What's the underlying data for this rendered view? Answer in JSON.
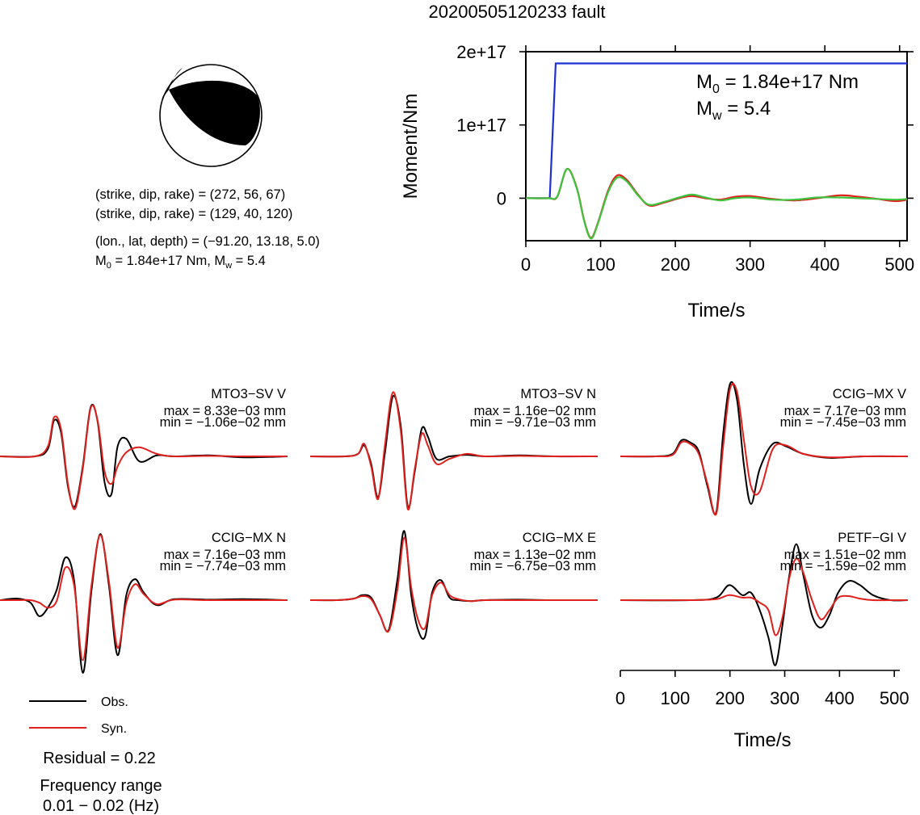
{
  "title": "20200505120233 fault",
  "colors": {
    "obs": "#000000",
    "syn": "#e0201c",
    "moment": "#1f2fd6",
    "moment_rate_a": "#e0201c",
    "moment_rate_b": "#3cc43c"
  },
  "beachball": {
    "lines": [
      "(strike, dip, rake) = (272, 56, 67)",
      "(strike, dip, rake) = (129, 40, 120)",
      "(lon., lat, depth) = (−91.20, 13.18, 5.0)"
    ],
    "m0_label": "M",
    "m0_sub": "0",
    "m0_value": " = 1.84e+17 Nm, M",
    "mw_sub": "w",
    "mw_value": " = 5.4"
  },
  "chart_data": [
    {
      "type": "line",
      "title": "",
      "xlabel": "Time/s",
      "ylabel": "Moment/Nm",
      "xlim": [
        0,
        510
      ],
      "ylim": [
        -5.8e+16,
        2e+17
      ],
      "xticks": [
        0,
        100,
        200,
        300,
        400,
        500
      ],
      "xtick_labels": [
        "0",
        "100",
        "200",
        "300",
        "400",
        "500"
      ],
      "yticks": [
        0,
        1e+17,
        2e+17
      ],
      "ytick_labels": [
        "0",
        "1e+17",
        "2e+17"
      ],
      "annotation": {
        "m0_label": "M",
        "m0_sub": "0",
        "m0_value": " = 1.84e+17 Nm",
        "mw_label": "M",
        "mw_sub": "w",
        "mw_value": " = 5.4"
      },
      "series": [
        {
          "color": "#1f2fd6",
          "x": [
            0,
            32,
            40,
            510
          ],
          "y": [
            0,
            0,
            1.84e+17,
            1.84e+17
          ]
        },
        {
          "color": "#e0201c",
          "x": [
            0,
            30,
            42,
            55,
            68,
            78,
            87,
            96,
            110,
            122,
            135,
            150,
            165,
            185,
            205,
            222,
            240,
            260,
            280,
            300,
            330,
            360,
            390,
            420,
            445,
            470,
            495,
            510
          ],
          "y": [
            0,
            0,
            2000000000000000.0,
            4e+16,
            1.5e+16,
            -3e+16,
            -5.4e+16,
            -3.5e+16,
            1e+16,
            3.1e+16,
            2.5e+16,
            5000000000000000.0,
            -1e+16,
            -6000000000000000.0,
            0,
            3000000000000000.0,
            0,
            -2000000000000000.0,
            2000000000000000.0,
            3000000000000000.0,
            -1000000000000000.0,
            -3000000000000000.0,
            0,
            4000000000000000.0,
            2000000000000000.0,
            -1000000000000000.0,
            -4000000000000000.0,
            -2000000000000000.0
          ]
        },
        {
          "color": "#3cc43c",
          "x": [
            0,
            30,
            42,
            55,
            68,
            78,
            87,
            96,
            110,
            122,
            135,
            150,
            165,
            185,
            205,
            222,
            240,
            260,
            280,
            300,
            330,
            360,
            390,
            420,
            445,
            470,
            495,
            510
          ],
          "y": [
            0,
            0,
            2500000000000000.0,
            4e+16,
            1.4e+16,
            -3.1e+16,
            -5.5e+16,
            -3.6e+16,
            8000000000000000.0,
            2.8e+16,
            2.3e+16,
            4000000000000000.0,
            -9000000000000000.0,
            -5000000000000000.0,
            1000000000000000.0,
            5000000000000000.0,
            1000000000000000.0,
            -3000000000000000.0,
            0,
            1000000000000000.0,
            -2000000000000000.0,
            -2000000000000000.0,
            1000000000000000.0,
            1000000000000000.0,
            0,
            -1000000000000000.0,
            -2000000000000000.0,
            -1000000000000000.0
          ]
        }
      ]
    },
    {
      "type": "line",
      "title": "",
      "xlabel": "Time/s",
      "xlim": [
        0,
        510
      ],
      "xticks": [
        0,
        100,
        200,
        300,
        400,
        500
      ],
      "xtick_labels": [
        "0",
        "100",
        "200",
        "300",
        "400",
        "500"
      ],
      "legend": [
        {
          "name": "Obs.",
          "color": "#000000"
        },
        {
          "name": "Syn.",
          "color": "#e0201c"
        }
      ],
      "panels": [
        {
          "station": "MTO3−SV V",
          "max": "max = 8.33e−03 mm",
          "min": "min = −1.06e−02 mm",
          "obs": {
            "t": [
              0,
              40,
              55,
              62,
              70,
              78,
              86,
              95,
              104,
              112,
              120,
              128,
              135,
              145,
              160,
              180,
              200,
              240,
              280,
              330
            ],
            "v": [
              0,
              0,
              0.15,
              0.72,
              0.48,
              -0.6,
              -1.0,
              -0.2,
              0.98,
              0.7,
              -0.52,
              -0.75,
              0.2,
              0.35,
              -0.1,
              0.02,
              0,
              0.02,
              -0.02,
              0
            ]
          },
          "syn": {
            "t": [
              0,
              40,
              55,
              62,
              70,
              78,
              86,
              95,
              104,
              112,
              120,
              128,
              135,
              145,
              160,
              180,
              200,
              240,
              280,
              330
            ],
            "v": [
              0,
              0,
              0.2,
              0.78,
              0.55,
              -0.55,
              -1.05,
              -0.25,
              0.96,
              0.72,
              -0.3,
              -0.55,
              -0.2,
              0.08,
              0.18,
              0.05,
              0,
              0.01,
              0,
              0
            ]
          }
        },
        {
          "station": "MTO3−SV N",
          "max": "max = 1.16e−02 mm",
          "min": "min = −9.71e−03 mm",
          "obs": {
            "t": [
              0,
              40,
              55,
              62,
              70,
              78,
              86,
              95,
              104,
              112,
              120,
              128,
              135,
              145,
              160,
              180,
              200,
              240,
              280,
              330
            ],
            "v": [
              0,
              0,
              0.05,
              0.22,
              -0.15,
              -0.82,
              0.1,
              1.2,
              0.6,
              -1.0,
              -0.3,
              0.55,
              0.4,
              -0.05,
              0.0,
              0.03,
              0,
              0.02,
              0,
              0
            ]
          },
          "syn": {
            "t": [
              0,
              40,
              55,
              62,
              70,
              78,
              86,
              95,
              104,
              112,
              120,
              128,
              135,
              145,
              160,
              180,
              200,
              240,
              280,
              330
            ],
            "v": [
              0,
              0,
              0.05,
              0.25,
              -0.2,
              -0.85,
              0.25,
              1.28,
              0.5,
              -1.05,
              -0.25,
              0.45,
              0.22,
              -0.15,
              -0.05,
              0.05,
              0,
              0.01,
              0,
              0
            ]
          }
        },
        {
          "station": "CCIG−MX V",
          "max": "max = 7.17e−03 mm",
          "min": "min = −7.45e−03 mm",
          "obs": {
            "t": [
              0,
              40,
              60,
              70,
              80,
              90,
              100,
              110,
              118,
              126,
              134,
              142,
              150,
              160,
              175,
              190,
              210,
              240,
              280,
              330
            ],
            "v": [
              0,
              0,
              0.05,
              0.32,
              0.28,
              0.1,
              -0.6,
              -1.12,
              0.45,
              1.45,
              1.12,
              -0.2,
              -0.95,
              -0.25,
              0.25,
              0.2,
              0.05,
              -0.03,
              0.0,
              0
            ]
          },
          "syn": {
            "t": [
              0,
              40,
              60,
              70,
              80,
              90,
              100,
              110,
              118,
              126,
              134,
              142,
              150,
              160,
              175,
              190,
              210,
              240,
              280,
              330
            ],
            "v": [
              0,
              0,
              0.03,
              0.28,
              0.25,
              0.05,
              -0.55,
              -1.15,
              0.2,
              1.35,
              1.28,
              0.3,
              -0.6,
              -0.7,
              0.15,
              0.22,
              0.05,
              -0.02,
              0,
              0
            ]
          }
        },
        {
          "station": "CCIG−MX N",
          "max": "max = 7.16e−03 mm",
          "min": "min = −7.74e−03 mm",
          "obs": {
            "t": [
              0,
              20,
              35,
              45,
              55,
              65,
              75,
              85,
              95,
              105,
              115,
              125,
              135,
              145,
              155,
              165,
              180,
              200,
              240,
              280,
              330
            ],
            "v": [
              0,
              0.03,
              -0.05,
              -0.32,
              -0.15,
              0.2,
              0.85,
              0.4,
              -1.45,
              0.2,
              1.32,
              0.3,
              -1.1,
              0.1,
              0.42,
              0.15,
              -0.1,
              0.02,
              0.01,
              0.02,
              0
            ]
          },
          "syn": {
            "t": [
              0,
              20,
              35,
              45,
              55,
              65,
              75,
              85,
              95,
              105,
              115,
              125,
              135,
              145,
              155,
              165,
              180,
              200,
              240,
              280,
              330
            ],
            "v": [
              0,
              0,
              0,
              -0.05,
              -0.15,
              -0.02,
              0.65,
              0.3,
              -1.2,
              0.3,
              1.3,
              0.38,
              -0.95,
              -0.05,
              0.32,
              0.12,
              -0.08,
              0.01,
              0,
              0,
              0
            ]
          }
        },
        {
          "station": "CCIG−MX E",
          "max": "max = 1.13e−02 mm",
          "min": "min = −6.75e−03 mm",
          "obs": {
            "t": [
              0,
              30,
              50,
              60,
              70,
              80,
              90,
              100,
              108,
              116,
              124,
              132,
              140,
              150,
              160,
              170,
              185,
              200,
              240,
              280,
              330
            ],
            "v": [
              0,
              0,
              0.03,
              0.1,
              0.05,
              -0.3,
              -0.6,
              0.4,
              1.38,
              0.1,
              -0.6,
              -0.72,
              0.15,
              0.4,
              0.05,
              0.0,
              -0.02,
              0,
              0.01,
              0,
              0
            ]
          },
          "syn": {
            "t": [
              0,
              30,
              50,
              60,
              70,
              80,
              90,
              100,
              108,
              116,
              124,
              132,
              140,
              150,
              160,
              170,
              185,
              200,
              240,
              280,
              330
            ],
            "v": [
              0,
              0,
              0.03,
              0.08,
              0.02,
              -0.3,
              -0.62,
              0.2,
              1.25,
              0.25,
              -0.4,
              -0.55,
              0.1,
              0.35,
              0.1,
              0.02,
              -0.02,
              0,
              0,
              0,
              0
            ]
          }
        },
        {
          "station": "PETF−GI V",
          "max": "max = 1.51e−02 mm",
          "min": "min = −1.59e−02 mm",
          "obs": {
            "t": [
              0,
              80,
              110,
              125,
              140,
              150,
              160,
              170,
              178,
              186,
              194,
              202,
              210,
              220,
              230,
              240,
              250,
              262,
              275,
              290,
              310,
              330
            ],
            "v": [
              0,
              0,
              0.05,
              0.3,
              0.1,
              0.15,
              -0.2,
              -0.75,
              -1.3,
              -0.5,
              0.5,
              1.12,
              0.5,
              -0.3,
              -0.55,
              -0.3,
              0.15,
              0.38,
              0.3,
              0.1,
              0.0,
              0
            ]
          },
          "syn": {
            "t": [
              0,
              80,
              110,
              125,
              140,
              150,
              160,
              170,
              178,
              186,
              194,
              202,
              210,
              220,
              230,
              240,
              250,
              262,
              275,
              290,
              310,
              330
            ],
            "v": [
              0,
              0,
              0.02,
              0.1,
              0.05,
              0.05,
              -0.05,
              -0.2,
              -0.7,
              -0.35,
              0.45,
              0.83,
              0.55,
              0.0,
              -0.38,
              -0.2,
              0.05,
              0.08,
              0.03,
              0.0,
              0.0,
              0
            ]
          }
        }
      ]
    }
  ],
  "footer": {
    "residual": "Residual = 0.22",
    "freq_title": "Frequency range",
    "freq_range": "0.01 − 0.02 (Hz)"
  }
}
